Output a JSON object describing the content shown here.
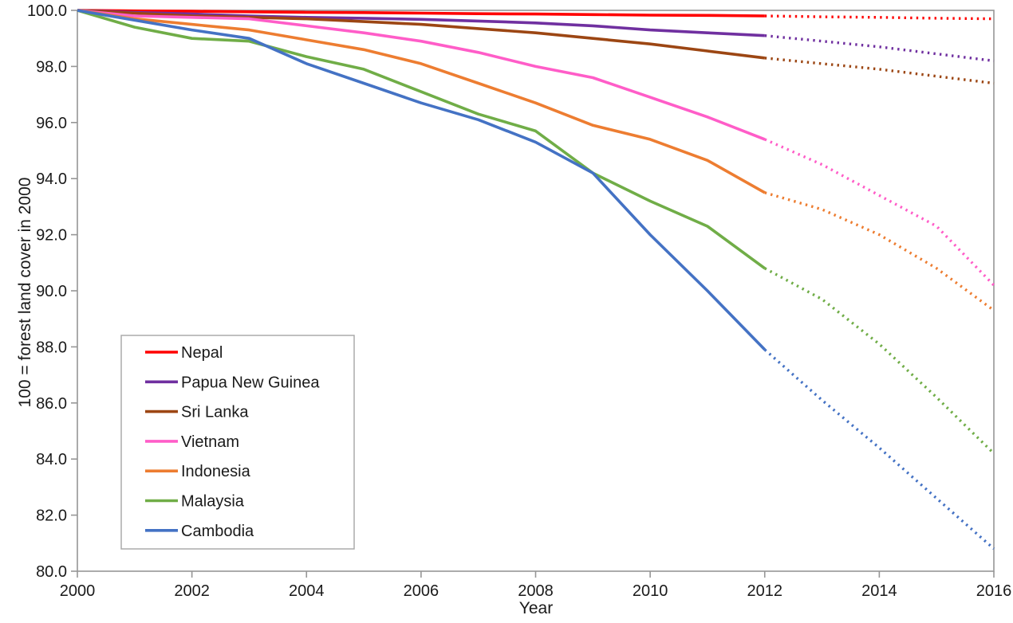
{
  "chart_data": {
    "type": "line",
    "title": "",
    "xlabel": "Year",
    "ylabel": "100 = forest land cover in 2000",
    "xlim": [
      2000,
      2016
    ],
    "ylim": [
      80,
      100
    ],
    "grid": false,
    "legend_position": "lower-left",
    "x_tick_labels": [
      "2000",
      "2002",
      "2004",
      "2006",
      "2008",
      "2010",
      "2012",
      "2014",
      "2016"
    ],
    "y_tick_labels": [
      "100.0",
      "98.0",
      "96.0",
      "94.0",
      "92.0",
      "90.0",
      "88.0",
      "86.0",
      "84.0",
      "82.0",
      "80.0"
    ],
    "x": [
      2000,
      2001,
      2002,
      2003,
      2004,
      2005,
      2006,
      2007,
      2008,
      2009,
      2010,
      2011,
      2012,
      2013,
      2014,
      2015,
      2016
    ],
    "solid_until_x": 2012,
    "line_style_note": "solid lines 2000-2012, dotted projection 2012-2016",
    "axis_color": "#969696",
    "series": [
      {
        "name": "Nepal",
        "color": "#FF0000",
        "values": [
          100,
          99.98,
          99.97,
          99.95,
          99.93,
          99.92,
          99.9,
          99.88,
          99.87,
          99.85,
          99.83,
          99.82,
          99.8,
          99.77,
          99.75,
          99.72,
          99.7
        ]
      },
      {
        "name": "Papua New Guinea",
        "color": "#7030A0",
        "values": [
          100,
          99.93,
          99.87,
          99.8,
          99.75,
          99.72,
          99.68,
          99.62,
          99.55,
          99.45,
          99.3,
          99.2,
          99.1,
          98.9,
          98.7,
          98.45,
          98.2
        ]
      },
      {
        "name": "Sri Lanka",
        "color": "#9C4613",
        "values": [
          100,
          99.9,
          99.8,
          99.75,
          99.7,
          99.6,
          99.5,
          99.35,
          99.2,
          99.0,
          98.8,
          98.55,
          98.3,
          98.1,
          97.9,
          97.65,
          97.4
        ]
      },
      {
        "name": "Vietnam",
        "color": "#FF5DC8",
        "values": [
          100,
          99.8,
          99.75,
          99.7,
          99.45,
          99.2,
          98.9,
          98.5,
          98.0,
          97.6,
          96.9,
          96.2,
          95.4,
          94.5,
          93.4,
          92.3,
          90.2
        ]
      },
      {
        "name": "Indonesia",
        "color": "#ED7D31",
        "values": [
          100,
          99.7,
          99.5,
          99.3,
          98.95,
          98.6,
          98.1,
          97.4,
          96.7,
          95.9,
          95.4,
          94.65,
          93.5,
          92.9,
          92.0,
          90.8,
          89.3
        ]
      },
      {
        "name": "Malaysia",
        "color": "#70AD47",
        "values": [
          100,
          99.4,
          99.0,
          98.9,
          98.35,
          97.9,
          97.1,
          96.3,
          95.7,
          94.2,
          93.2,
          92.3,
          90.8,
          89.7,
          88.1,
          86.2,
          84.2
        ]
      },
      {
        "name": "Cambodia",
        "color": "#4472C4",
        "values": [
          100,
          99.65,
          99.3,
          99.0,
          98.1,
          97.4,
          96.7,
          96.1,
          95.3,
          94.2,
          92.0,
          90.0,
          87.9,
          86.1,
          84.4,
          82.6,
          80.8
        ]
      }
    ]
  }
}
